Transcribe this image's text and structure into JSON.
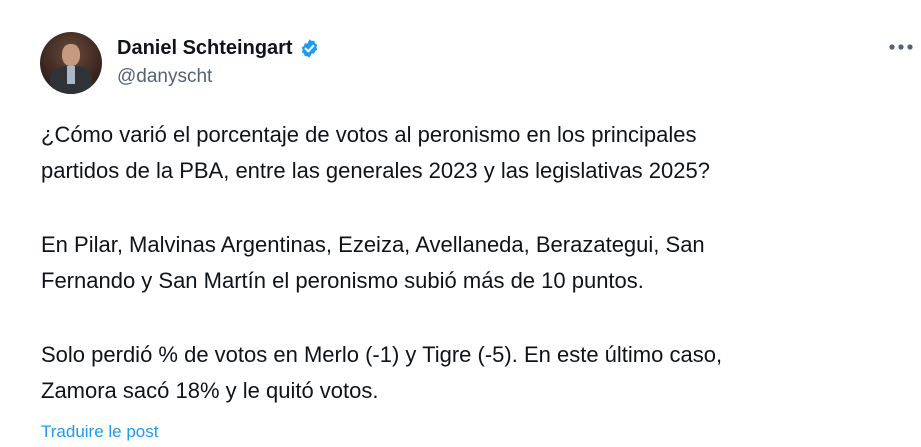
{
  "author": {
    "name": "Daniel Schteingart",
    "handle": "@danyscht",
    "verified": true,
    "verified_color": "#1d9bf0"
  },
  "menu_icon": "more-horizontal-icon",
  "tweet": {
    "paragraphs": [
      "¿Cómo varió el porcentaje de votos al peronismo en los principales\npartidos de la PBA, entre las generales 2023 y las legislativas 2025?",
      "En Pilar, Malvinas Argentinas, Ezeiza, Avellaneda, Berazategui, San\nFernando y San Martín el peronismo subió más de 10 puntos.",
      "Solo perdió % de votos en Merlo (-1) y Tigre (-5). En este último caso,\nZamora sacó 18% y le quitó votos."
    ],
    "translate_label": "Traduire le post"
  }
}
